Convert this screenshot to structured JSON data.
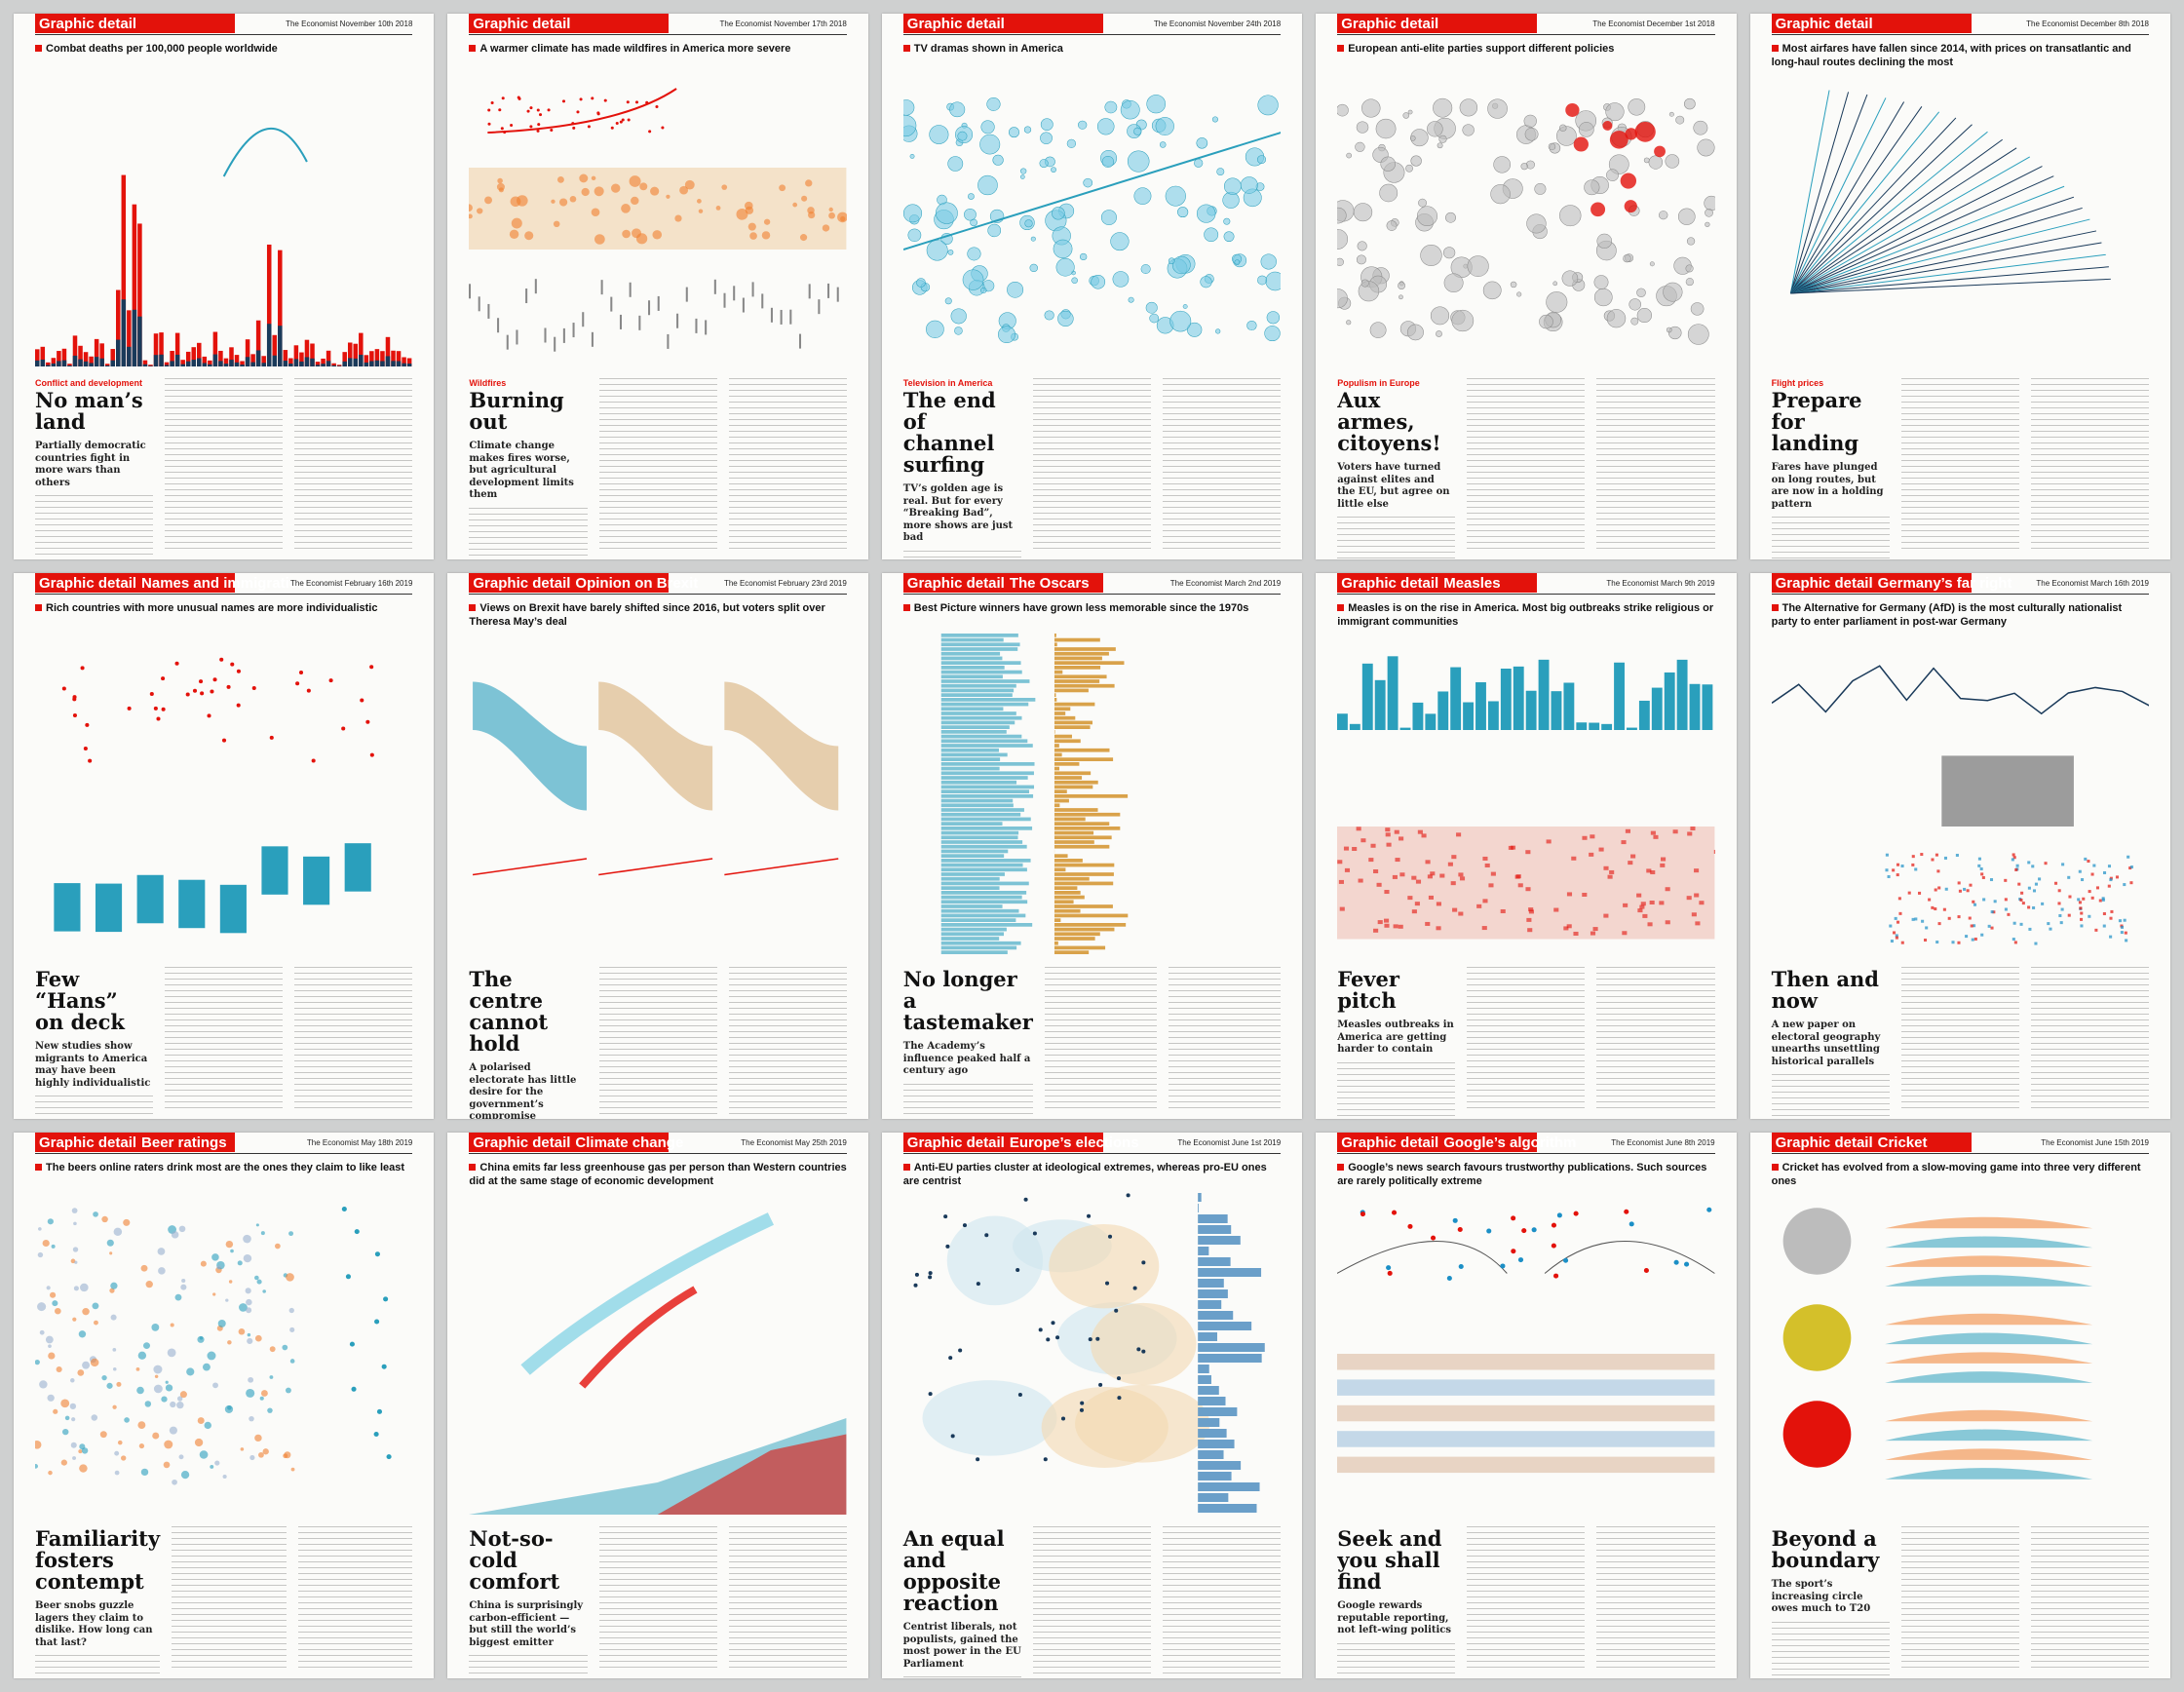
{
  "colors": {
    "red": "#e3120b",
    "blue": "#1b8fc6",
    "lightblue": "#7ccbe4",
    "teal": "#2a9fbc",
    "navy": "#1a3a5a",
    "orange": "#f08030",
    "grey": "#9a9a98"
  },
  "pages": [
    {
      "section": "Graphic detail",
      "topic": "",
      "issue": "The Economist November 10th 2018",
      "title": "Combat deaths per 100,000 people worldwide",
      "kicker": "Conflict and development",
      "headline": "No man’s land",
      "rubric": "Partially democratic countries fight in more wars than others",
      "chart_kind": "area-spikes"
    },
    {
      "section": "Graphic detail",
      "topic": "",
      "issue": "The Economist November 17th 2018",
      "title": "A warmer climate has made wildfires in America more severe",
      "kicker": "Wildfires",
      "headline": "Burning out",
      "rubric": "Climate change makes fires worse, but agricultural development limits them",
      "chart_kind": "text-right"
    },
    {
      "section": "Graphic detail",
      "topic": "",
      "issue": "The Economist November 24th 2018",
      "title": "TV dramas shown in America",
      "kicker": "Television in America",
      "headline": "The end of channel surfing",
      "rubric": "TV’s golden age is real. But for every “Breaking Bad”, more shows are just bad",
      "chart_kind": "bubbles"
    },
    {
      "section": "Graphic detail",
      "topic": "",
      "issue": "The Economist December 1st 2018",
      "title": "European anti-elite parties support different policies",
      "kicker": "Populism in Europe",
      "headline": "Aux armes, citoyens!",
      "rubric": "Voters have turned against elites and the EU, but agree on little else",
      "chart_kind": "bubbles-grey"
    },
    {
      "section": "Graphic detail",
      "topic": "",
      "issue": "The Economist December 8th 2018",
      "title": "Most airfares have fallen since 2014, with prices on transatlantic and long-haul routes declining the most",
      "kicker": "Flight prices",
      "headline": "Prepare for landing",
      "rubric": "Fares have plunged on long routes, but are now in a holding pattern",
      "chart_kind": "fan"
    },
    {
      "section": "Graphic detail",
      "topic": "Names and immigration",
      "issue": "The Economist February 16th 2019",
      "title": "Rich countries with more unusual names are more individualistic",
      "kicker": "",
      "headline": "Few “Hans” on deck",
      "rubric": "New studies show migrants to America may have been highly individualistic",
      "chart_kind": "dots-bars"
    },
    {
      "section": "Graphic detail",
      "topic": "Opinion on Brexit",
      "issue": "The Economist February 23rd 2019",
      "title": "Views on Brexit have barely shifted since 2016, but voters split over Theresa May’s deal",
      "kicker": "",
      "headline": "The centre cannot hold",
      "rubric": "A polarised electorate has little desire for the government’s compromise",
      "chart_kind": "flows"
    },
    {
      "section": "Graphic detail",
      "topic": "The Oscars",
      "issue": "The Economist March 2nd 2019",
      "title": "Best Picture winners have grown less memorable since the 1970s",
      "kicker": "",
      "headline": "No longer a tastemaker",
      "rubric": "The Academy’s influence peaked half a century ago",
      "chart_kind": "oscars"
    },
    {
      "section": "Graphic detail",
      "topic": "Measles",
      "issue": "The Economist March 9th 2019",
      "title": "Measles is on the rise in America. Most big outbreaks strike religious or immigrant communities",
      "kicker": "",
      "headline": "Fever pitch",
      "rubric": "Measles outbreaks in America are getting harder to contain",
      "chart_kind": "measles"
    },
    {
      "section": "Graphic detail",
      "topic": "Germany’s far right",
      "issue": "The Economist March 16th 2019",
      "title": "The Alternative for Germany (AfD) is the most culturally nationalist party to enter parliament in post-war Germany",
      "kicker": "",
      "headline": "Then and now",
      "rubric": "A new paper on electoral geography unearths unsettling historical parallels",
      "chart_kind": "germany"
    },
    {
      "section": "Graphic detail",
      "topic": "Beer ratings",
      "issue": "The Economist May 18th 2019",
      "title": "The beers online raters drink most are the ones they claim to like least",
      "kicker": "",
      "headline": "Familiarity fosters contempt",
      "rubric": "Beer snobs guzzle lagers they claim to dislike. How long can that last?",
      "chart_kind": "beer"
    },
    {
      "section": "Graphic detail",
      "topic": "Climate change",
      "issue": "The Economist May 25th 2019",
      "title": "China emits far less greenhouse gas per person than Western countries did at the same stage of economic development",
      "kicker": "",
      "headline": "Not-so-cold comfort",
      "rubric": "China is surprisingly carbon-efficient — but still the world’s biggest emitter",
      "chart_kind": "climate"
    },
    {
      "section": "Graphic detail",
      "topic": "Europe’s elections",
      "issue": "The Economist June 1st 2019",
      "title": "Anti-EU parties cluster at ideological extremes, whereas pro-EU ones are centrist",
      "kicker": "",
      "headline": "An equal and opposite reaction",
      "rubric": "Centrist liberals, not populists, gained the most power in the EU Parliament",
      "chart_kind": "europe"
    },
    {
      "section": "Graphic detail",
      "topic": "Google’s algorithm",
      "issue": "The Economist June 8th 2019",
      "title": "Google’s news search favours trustworthy publications. Such sources are rarely politically extreme",
      "kicker": "",
      "headline": "Seek and you shall find",
      "rubric": "Google rewards reputable reporting, not left-wing politics",
      "chart_kind": "google"
    },
    {
      "section": "Graphic detail",
      "topic": "Cricket",
      "issue": "The Economist June 15th 2019",
      "title": "Cricket has evolved from a slow-moving game into three very different ones",
      "kicker": "",
      "headline": "Beyond a boundary",
      "rubric": "The sport’s increasing circle owes much to T20",
      "chart_kind": "cricket"
    }
  ]
}
